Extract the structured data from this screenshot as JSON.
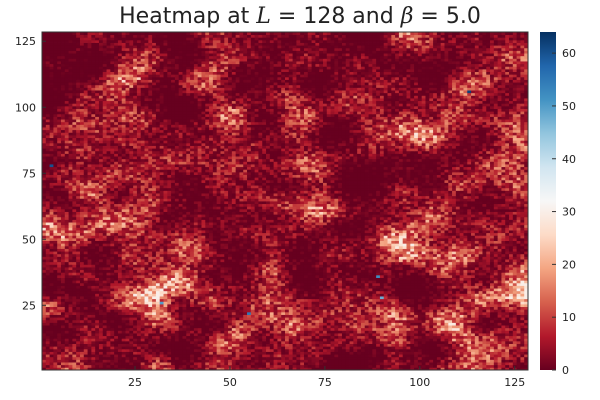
{
  "chart_data": {
    "type": "heatmap",
    "title": {
      "prefix": "Heatmap at ",
      "var1": "L",
      "mid": " = 128 and ",
      "var2": "β",
      "suffix": " = 5.0"
    },
    "grid": {
      "nx": 128,
      "ny": 128
    },
    "xlim": [
      0.5,
      128.5
    ],
    "ylim": [
      0.5,
      128.5
    ],
    "x_ticks": [
      25,
      50,
      75,
      100,
      125
    ],
    "y_ticks": [
      25,
      50,
      75,
      100,
      125
    ],
    "colorbar": {
      "colormap": "RdBu",
      "range": [
        0,
        64
      ],
      "ticks": [
        0,
        10,
        20,
        30,
        40,
        50,
        60
      ]
    },
    "hotspots": [
      {
        "x": 3,
        "y": 78,
        "value": 60
      },
      {
        "x": 113,
        "y": 106,
        "value": 62
      },
      {
        "x": 32,
        "y": 26,
        "value": 50
      },
      {
        "x": 55,
        "y": 22,
        "value": 55
      },
      {
        "x": 90,
        "y": 28,
        "value": 48
      },
      {
        "x": 89,
        "y": 36,
        "value": 52
      }
    ],
    "legend": "none",
    "grid_lines": false
  }
}
